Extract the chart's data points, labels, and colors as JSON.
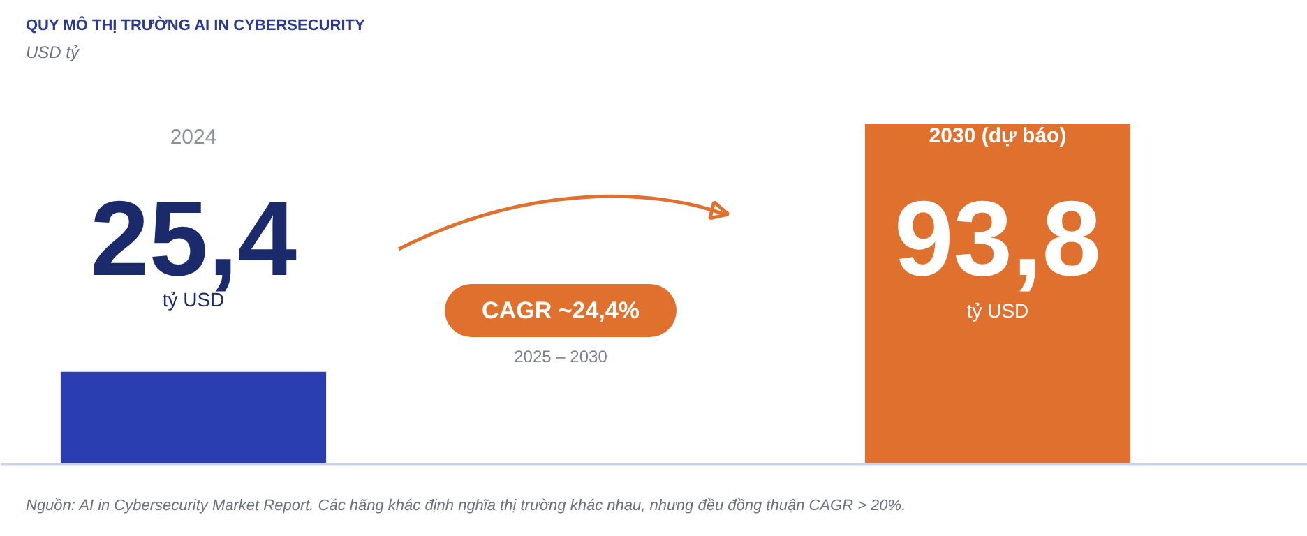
{
  "chart_data": {
    "type": "bar",
    "title": "QUY MÔ THỊ TRƯỜNG AI IN CYBERSECURITY",
    "subtitle": "USD tỷ",
    "categories": [
      "2024",
      "2030 (dự báo)"
    ],
    "values": [
      25.4,
      93.8
    ],
    "colors": [
      "#2a3eb1",
      "#e0702e"
    ],
    "value_labels": [
      "25,4",
      "93,8"
    ],
    "annotations": [
      "tỷ USD",
      "tỷ USD",
      "CAGR ~24,4%",
      "2025 – 2030",
      "Nguồn: AI in Cybersecurity Market Report. Các hãng khác định nghĩa thị trường khác nhau, nhưng đều đồng thuận CAGR > 20%."
    ]
  }
}
